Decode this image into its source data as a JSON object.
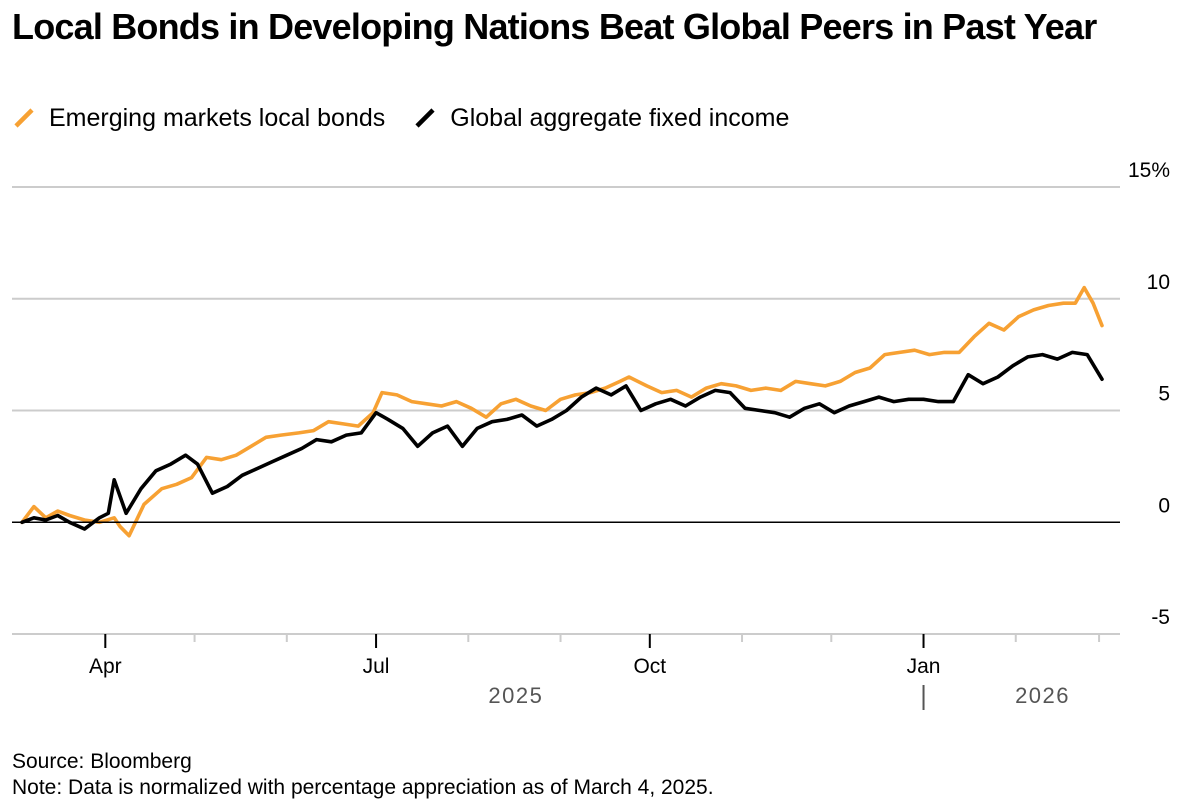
{
  "colors": {
    "em": "#f7a133",
    "global": "#000000",
    "grid": "#cccccc",
    "zero": "#000000",
    "axis_text": "#000000",
    "year_text": "#555555"
  },
  "icons": {
    "legend": "diagonal-stroke-icon"
  },
  "chart_data": {
    "type": "line",
    "title": "Local Bonds in Developing Nations Beat Global Peers in Past Year",
    "legend": [
      "Emerging markets local bonds",
      "Global aggregate fixed income"
    ],
    "legend_position": "top-left",
    "y_axis_position": "right",
    "ylim": [
      -5,
      15
    ],
    "yticks": [
      15,
      10,
      5,
      0,
      -5
    ],
    "ytick_labels": [
      "15%",
      "10",
      "5",
      "0",
      "-5"
    ],
    "xlim": [
      "2025-03-04",
      "2026-03-04"
    ],
    "x_tick_labels": [
      {
        "date": "2025-04-01",
        "label": "Apr"
      },
      {
        "date": "2025-07-01",
        "label": "Jul"
      },
      {
        "date": "2025-10-01",
        "label": "Oct"
      },
      {
        "date": "2026-01-01",
        "label": "Jan"
      }
    ],
    "x_minor_ticks": [
      "2025-05-01",
      "2025-06-01",
      "2025-08-01",
      "2025-09-01",
      "2025-11-01",
      "2025-12-01",
      "2026-02-01",
      "2026-03-01"
    ],
    "year_labels": [
      {
        "label": "2025",
        "anchor_date": "2025-08-17"
      },
      {
        "label": "2026",
        "anchor_date": "2026-02-10"
      }
    ],
    "year_divider_date": "2026-01-01",
    "series": [
      {
        "name": "Emerging markets local bonds",
        "color": "#f7a133",
        "x": [
          "2025-03-04",
          "2025-03-08",
          "2025-03-12",
          "2025-03-16",
          "2025-03-20",
          "2025-03-25",
          "2025-03-30",
          "2025-04-04",
          "2025-04-06",
          "2025-04-09",
          "2025-04-14",
          "2025-04-20",
          "2025-04-25",
          "2025-04-30",
          "2025-05-05",
          "2025-05-10",
          "2025-05-15",
          "2025-05-20",
          "2025-05-25",
          "2025-05-30",
          "2025-06-05",
          "2025-06-10",
          "2025-06-15",
          "2025-06-20",
          "2025-06-25",
          "2025-06-30",
          "2025-07-03",
          "2025-07-08",
          "2025-07-13",
          "2025-07-18",
          "2025-07-23",
          "2025-07-28",
          "2025-08-02",
          "2025-08-07",
          "2025-08-12",
          "2025-08-17",
          "2025-08-22",
          "2025-08-27",
          "2025-09-01",
          "2025-09-06",
          "2025-09-11",
          "2025-09-16",
          "2025-09-21",
          "2025-09-24",
          "2025-09-30",
          "2025-10-05",
          "2025-10-10",
          "2025-10-15",
          "2025-10-20",
          "2025-10-25",
          "2025-10-30",
          "2025-11-04",
          "2025-11-09",
          "2025-11-14",
          "2025-11-19",
          "2025-11-24",
          "2025-11-29",
          "2025-12-04",
          "2025-12-09",
          "2025-12-14",
          "2025-12-19",
          "2025-12-24",
          "2025-12-29",
          "2026-01-03",
          "2026-01-08",
          "2026-01-13",
          "2026-01-18",
          "2026-01-23",
          "2026-01-28",
          "2026-02-02",
          "2026-02-07",
          "2026-02-12",
          "2026-02-17",
          "2026-02-21",
          "2026-02-24",
          "2026-02-27",
          "2026-03-02"
        ],
        "values": [
          0.0,
          0.7,
          0.2,
          0.5,
          0.3,
          0.1,
          0.0,
          0.2,
          -0.2,
          -0.6,
          0.8,
          1.5,
          1.7,
          2.0,
          2.9,
          2.8,
          3.0,
          3.4,
          3.8,
          3.9,
          4.0,
          4.1,
          4.5,
          4.4,
          4.3,
          4.9,
          5.8,
          5.7,
          5.4,
          5.3,
          5.2,
          5.4,
          5.1,
          4.7,
          5.3,
          5.5,
          5.2,
          5.0,
          5.5,
          5.7,
          5.8,
          6.0,
          6.3,
          6.5,
          6.1,
          5.8,
          5.9,
          5.6,
          6.0,
          6.2,
          6.1,
          5.9,
          6.0,
          5.9,
          6.3,
          6.2,
          6.1,
          6.3,
          6.7,
          6.9,
          7.5,
          7.6,
          7.7,
          7.5,
          7.6,
          7.6,
          8.3,
          8.9,
          8.6,
          9.2,
          9.5,
          9.7,
          9.8,
          9.8,
          10.5,
          9.8,
          8.8
        ]
      },
      {
        "name": "Global aggregate fixed income",
        "color": "#000000",
        "x": [
          "2025-03-04",
          "2025-03-08",
          "2025-03-12",
          "2025-03-16",
          "2025-03-20",
          "2025-03-25",
          "2025-03-30",
          "2025-04-02",
          "2025-04-04",
          "2025-04-08",
          "2025-04-13",
          "2025-04-18",
          "2025-04-23",
          "2025-04-28",
          "2025-05-02",
          "2025-05-07",
          "2025-05-12",
          "2025-05-17",
          "2025-05-22",
          "2025-05-27",
          "2025-06-01",
          "2025-06-06",
          "2025-06-11",
          "2025-06-16",
          "2025-06-21",
          "2025-06-26",
          "2025-07-01",
          "2025-07-05",
          "2025-07-10",
          "2025-07-15",
          "2025-07-20",
          "2025-07-25",
          "2025-07-30",
          "2025-08-04",
          "2025-08-09",
          "2025-08-14",
          "2025-08-19",
          "2025-08-24",
          "2025-08-29",
          "2025-09-03",
          "2025-09-08",
          "2025-09-13",
          "2025-09-18",
          "2025-09-23",
          "2025-09-28",
          "2025-10-03",
          "2025-10-08",
          "2025-10-13",
          "2025-10-18",
          "2025-10-23",
          "2025-10-28",
          "2025-11-02",
          "2025-11-07",
          "2025-11-12",
          "2025-11-17",
          "2025-11-22",
          "2025-11-27",
          "2025-12-02",
          "2025-12-07",
          "2025-12-12",
          "2025-12-17",
          "2025-12-22",
          "2025-12-27",
          "2026-01-01",
          "2026-01-06",
          "2026-01-11",
          "2026-01-16",
          "2026-01-21",
          "2026-01-26",
          "2026-01-31",
          "2026-02-05",
          "2026-02-10",
          "2026-02-15",
          "2026-02-20",
          "2026-02-25",
          "2026-03-02"
        ],
        "values": [
          0.0,
          0.2,
          0.1,
          0.3,
          0.0,
          -0.3,
          0.2,
          0.4,
          1.9,
          0.4,
          1.5,
          2.3,
          2.6,
          3.0,
          2.6,
          1.3,
          1.6,
          2.1,
          2.4,
          2.7,
          3.0,
          3.3,
          3.7,
          3.6,
          3.9,
          4.0,
          4.9,
          4.6,
          4.2,
          3.4,
          4.0,
          4.3,
          3.4,
          4.2,
          4.5,
          4.6,
          4.8,
          4.3,
          4.6,
          5.0,
          5.6,
          6.0,
          5.7,
          6.1,
          5.0,
          5.3,
          5.5,
          5.2,
          5.6,
          5.9,
          5.8,
          5.1,
          5.0,
          4.9,
          4.7,
          5.1,
          5.3,
          4.9,
          5.2,
          5.4,
          5.6,
          5.4,
          5.5,
          5.5,
          5.4,
          5.4,
          6.6,
          6.2,
          6.5,
          7.0,
          7.4,
          7.5,
          7.3,
          7.6,
          7.5,
          6.4
        ]
      }
    ]
  },
  "source": "Source: Bloomberg",
  "note": "Note: Data is normalized with percentage appreciation as of March 4, 2025."
}
